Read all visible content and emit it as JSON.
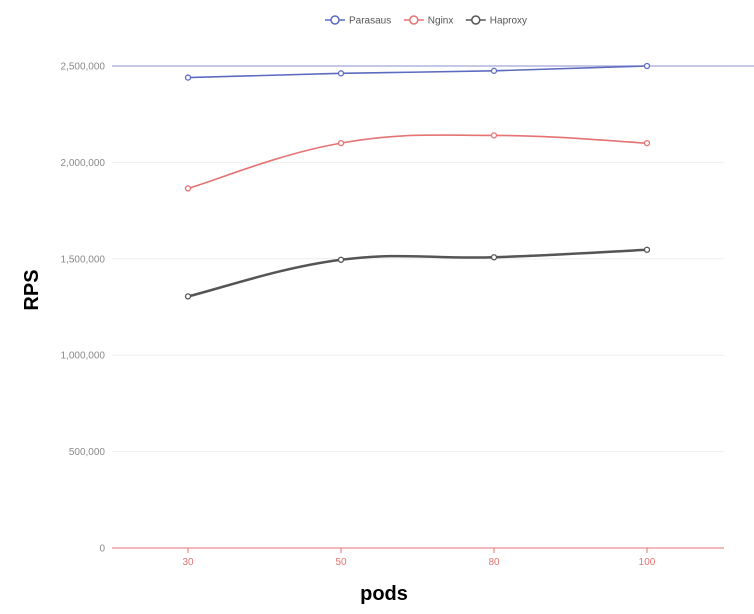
{
  "chart_data": {
    "type": "line",
    "categories": [
      "30",
      "50",
      "80",
      "100"
    ],
    "series": [
      {
        "name": "Parasaus",
        "values": [
          2440000,
          2462000,
          2475000,
          2500000
        ],
        "color": "#5c6bc0"
      },
      {
        "name": "Nginx",
        "values": [
          1865000,
          2100000,
          2140000,
          2100000
        ],
        "color": "#e57373"
      },
      {
        "name": "Haproxy",
        "values": [
          1305000,
          1495000,
          1508000,
          1547000
        ],
        "color": "#555555"
      }
    ],
    "xlabel": "pods",
    "ylabel": "RPS",
    "ylim": [
      0,
      2500000
    ],
    "yticks": [
      0,
      500000,
      1000000,
      1500000,
      2000000,
      2500000
    ],
    "ytick_labels": [
      "0",
      "500,000",
      "1,000,000",
      "1,500,000",
      "2,000,000",
      "2,500,000"
    ],
    "grid": true,
    "legend_position": "top-center"
  }
}
